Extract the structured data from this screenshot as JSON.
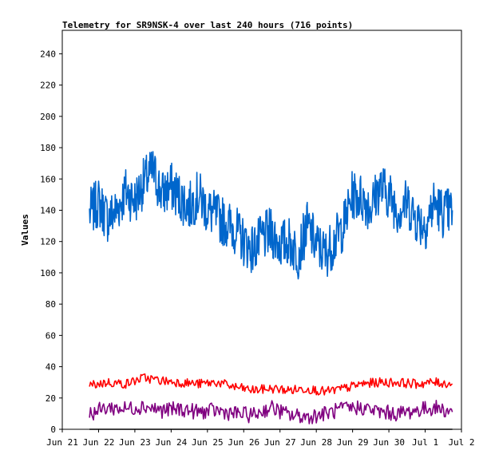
{
  "chart_data": {
    "type": "line",
    "title": "Telemetry for SR9NSK-4 over last 240 hours (716 points)",
    "xlabel": "",
    "ylabel": "Values",
    "xlim": [
      "2026-06-21",
      "2026-07-02"
    ],
    "ylim": [
      0,
      255
    ],
    "x_ticks": [
      "Jun 21",
      "Jun 22",
      "Jun 23",
      "Jun 24",
      "Jun 25",
      "Jun 26",
      "Jun 27",
      "Jun 28",
      "Jun 29",
      "Jun 30",
      "Jul 1",
      "Jul 2"
    ],
    "y_ticks": [
      0,
      20,
      40,
      60,
      80,
      100,
      120,
      140,
      160,
      180,
      200,
      220,
      240
    ],
    "grid": false,
    "legend": "none",
    "series": [
      {
        "color": "#0066cc",
        "x": [
          "2026-06-21T18:00",
          "2026-06-22T00:00",
          "2026-06-22T06:00",
          "2026-06-22T12:00",
          "2026-06-22T18:00",
          "2026-06-23T00:00",
          "2026-06-23T06:00",
          "2026-06-23T12:00",
          "2026-06-23T18:00",
          "2026-06-24T00:00",
          "2026-06-24T06:00",
          "2026-06-24T12:00",
          "2026-06-24T18:00",
          "2026-06-25T00:00",
          "2026-06-25T06:00",
          "2026-06-25T12:00",
          "2026-06-25T18:00",
          "2026-06-26T00:00",
          "2026-06-26T06:00",
          "2026-06-26T12:00",
          "2026-06-26T18:00",
          "2026-06-27T00:00",
          "2026-06-27T06:00",
          "2026-06-27T12:00",
          "2026-06-27T18:00",
          "2026-06-28T00:00",
          "2026-06-28T06:00",
          "2026-06-28T12:00",
          "2026-06-28T18:00",
          "2026-06-29T00:00",
          "2026-06-29T06:00",
          "2026-06-29T12:00",
          "2026-06-29T18:00",
          "2026-06-30T00:00",
          "2026-06-30T06:00",
          "2026-06-30T12:00",
          "2026-06-30T18:00",
          "2026-07-01T00:00",
          "2026-07-01T06:00",
          "2026-07-01T12:00",
          "2026-07-01T18:00"
        ],
        "values": [
          138,
          145,
          135,
          140,
          152,
          146,
          158,
          165,
          150,
          155,
          148,
          142,
          150,
          140,
          136,
          132,
          128,
          120,
          115,
          122,
          126,
          118,
          120,
          112,
          130,
          118,
          112,
          120,
          130,
          150,
          148,
          142,
          155,
          150,
          140,
          145,
          135,
          130,
          145,
          138,
          140
        ]
      },
      {
        "color": "#ff0000",
        "x": [
          "2026-06-21T18:00",
          "2026-06-22T06:00",
          "2026-06-22T18:00",
          "2026-06-23T06:00",
          "2026-06-23T18:00",
          "2026-06-24T06:00",
          "2026-06-24T18:00",
          "2026-06-25T06:00",
          "2026-06-25T18:00",
          "2026-06-26T06:00",
          "2026-06-26T18:00",
          "2026-06-27T06:00",
          "2026-06-27T18:00",
          "2026-06-28T06:00",
          "2026-06-28T18:00",
          "2026-06-29T06:00",
          "2026-06-29T18:00",
          "2026-06-30T06:00",
          "2026-06-30T18:00",
          "2026-07-01T06:00",
          "2026-07-01T18:00"
        ],
        "values": [
          28,
          30,
          29,
          33,
          31,
          30,
          29,
          30,
          27,
          25,
          26,
          25,
          26,
          24,
          26,
          29,
          30,
          30,
          29,
          30,
          29
        ]
      },
      {
        "color": "#800080",
        "x": [
          "2026-06-21T18:00",
          "2026-06-22T06:00",
          "2026-06-22T18:00",
          "2026-06-23T06:00",
          "2026-06-23T18:00",
          "2026-06-24T06:00",
          "2026-06-24T18:00",
          "2026-06-25T06:00",
          "2026-06-25T18:00",
          "2026-06-26T06:00",
          "2026-06-26T18:00",
          "2026-06-27T06:00",
          "2026-06-27T18:00",
          "2026-06-28T06:00",
          "2026-06-28T18:00",
          "2026-06-29T06:00",
          "2026-06-29T18:00",
          "2026-06-30T06:00",
          "2026-06-30T18:00",
          "2026-07-01T06:00",
          "2026-07-01T18:00"
        ],
        "values": [
          10,
          14,
          13,
          15,
          12,
          13,
          11,
          12,
          10,
          9,
          14,
          9,
          8,
          10,
          13,
          14,
          11,
          10,
          12,
          14,
          11
        ]
      },
      {
        "color": "#000000",
        "x": [
          "2026-06-21T18:00",
          "2026-07-01T18:00"
        ],
        "values": [
          0,
          0
        ]
      }
    ]
  }
}
